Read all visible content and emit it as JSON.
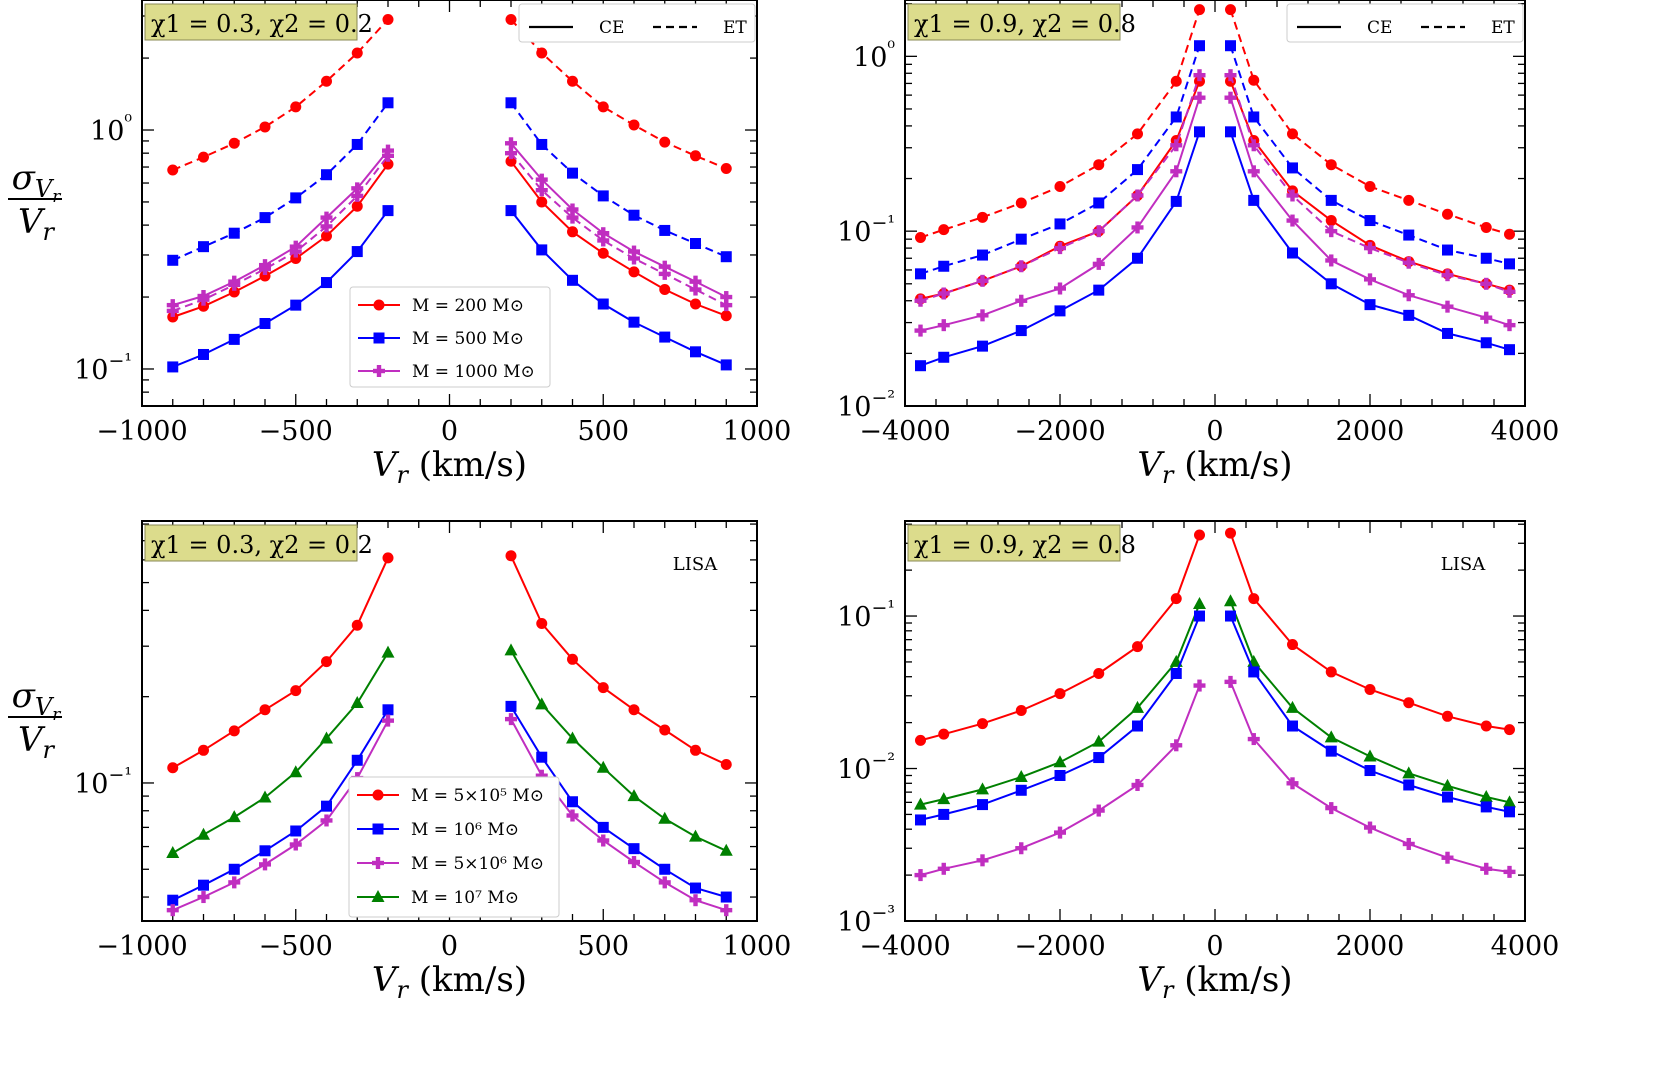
{
  "figure": {
    "ylabel_num": "σ",
    "ylabel_sub": "Vr",
    "ylabel_den": "Vr"
  },
  "chart_data": [
    {
      "type": "line",
      "id": "top-left",
      "xlabel": "Vr (km/s)",
      "xlim": [
        -1000,
        1000
      ],
      "xticks": [
        -1000,
        -500,
        0,
        500,
        1000
      ],
      "xtick_labels": [
        "−1000",
        "−500",
        "0",
        "500",
        "1000"
      ],
      "yscale": "log",
      "ylim": [
        0.07,
        3.5
      ],
      "ytick_exps": [
        -1,
        0
      ],
      "annotation": "χ1 = 0.3, χ2 = 0.2",
      "linestyle_legend": [
        {
          "label": "CE",
          "dash": "solid"
        },
        {
          "label": "ET",
          "dash": "dashed"
        }
      ],
      "detector_label": "",
      "legend": [
        "M = 200 M⊙",
        "M = 500 M⊙",
        "M = 1000 M⊙"
      ],
      "x": [
        -900,
        -800,
        -700,
        -600,
        -500,
        -400,
        -300,
        -200,
        200,
        300,
        400,
        500,
        600,
        700,
        800,
        900
      ],
      "series": [
        {
          "name": "M = 200 M⊙ (CE)",
          "color": "#ff0000",
          "marker": "circle",
          "dash": "solid",
          "values": [
            0.165,
            0.183,
            0.21,
            0.245,
            0.29,
            0.36,
            0.48,
            0.72,
            0.74,
            0.5,
            0.375,
            0.305,
            0.255,
            0.215,
            0.187,
            0.167
          ]
        },
        {
          "name": "M = 200 M⊙ (ET)",
          "color": "#ff0000",
          "marker": "circle",
          "dash": "dashed",
          "values": [
            0.68,
            0.77,
            0.88,
            1.03,
            1.25,
            1.6,
            2.1,
            2.9,
            2.9,
            2.1,
            1.6,
            1.25,
            1.05,
            0.89,
            0.78,
            0.69
          ]
        },
        {
          "name": "M = 500 M⊙ (CE)",
          "color": "#0000ff",
          "marker": "square",
          "dash": "solid",
          "values": [
            0.102,
            0.115,
            0.133,
            0.155,
            0.185,
            0.23,
            0.31,
            0.46,
            0.46,
            0.315,
            0.235,
            0.187,
            0.157,
            0.136,
            0.118,
            0.104
          ]
        },
        {
          "name": "M = 500 M⊙ (ET)",
          "color": "#0000ff",
          "marker": "square",
          "dash": "dashed",
          "values": [
            0.285,
            0.325,
            0.37,
            0.43,
            0.52,
            0.65,
            0.87,
            1.3,
            1.3,
            0.87,
            0.66,
            0.53,
            0.44,
            0.38,
            0.335,
            0.295
          ]
        },
        {
          "name": "M = 1000 M⊙ (CE)",
          "color": "#c02ec0",
          "marker": "plus",
          "dash": "solid",
          "values": [
            0.185,
            0.202,
            0.232,
            0.272,
            0.325,
            0.43,
            0.57,
            0.82,
            0.88,
            0.62,
            0.465,
            0.37,
            0.31,
            0.268,
            0.232,
            0.2
          ]
        },
        {
          "name": "M = 1000 M⊙ (ET)",
          "color": "#c02ec0",
          "marker": "plus",
          "dash": "dashed",
          "values": [
            0.175,
            0.195,
            0.225,
            0.262,
            0.31,
            0.395,
            0.53,
            0.78,
            0.8,
            0.56,
            0.43,
            0.345,
            0.29,
            0.25,
            0.215,
            0.185
          ]
        }
      ]
    },
    {
      "type": "line",
      "id": "top-right",
      "xlabel": "Vr (km/s)",
      "xlim": [
        -4000,
        4000
      ],
      "xticks": [
        -4000,
        -2000,
        0,
        2000,
        4000
      ],
      "xtick_labels": [
        "−4000",
        "−2000",
        "0",
        "2000",
        "4000"
      ],
      "yscale": "log",
      "ylim": [
        0.01,
        2.1
      ],
      "ytick_exps": [
        -2,
        -1,
        0
      ],
      "annotation": "χ1 = 0.9, χ2 = 0.8",
      "linestyle_legend": [
        {
          "label": "CE",
          "dash": "solid"
        },
        {
          "label": "ET",
          "dash": "dashed"
        }
      ],
      "detector_label": "",
      "legend": [],
      "x": [
        -3800,
        -3500,
        -3000,
        -2500,
        -2000,
        -1500,
        -1000,
        -500,
        -200,
        200,
        500,
        1000,
        1500,
        2000,
        2500,
        3000,
        3500,
        3800
      ],
      "series": [
        {
          "name": "red CE",
          "color": "#ff0000",
          "marker": "circle",
          "dash": "solid",
          "values": [
            0.041,
            0.044,
            0.052,
            0.063,
            0.082,
            0.1,
            0.16,
            0.33,
            0.72,
            0.72,
            0.33,
            0.17,
            0.115,
            0.083,
            0.067,
            0.057,
            0.05,
            0.046
          ]
        },
        {
          "name": "red ET",
          "color": "#ff0000",
          "marker": "circle",
          "dash": "dashed",
          "values": [
            0.092,
            0.102,
            0.12,
            0.145,
            0.18,
            0.24,
            0.36,
            0.72,
            1.85,
            1.85,
            0.73,
            0.36,
            0.24,
            0.18,
            0.15,
            0.125,
            0.105,
            0.096
          ]
        },
        {
          "name": "blue CE",
          "color": "#0000ff",
          "marker": "square",
          "dash": "solid",
          "values": [
            0.017,
            0.019,
            0.022,
            0.027,
            0.035,
            0.046,
            0.07,
            0.148,
            0.37,
            0.37,
            0.15,
            0.075,
            0.05,
            0.038,
            0.033,
            0.026,
            0.023,
            0.021
          ]
        },
        {
          "name": "blue ET",
          "color": "#0000ff",
          "marker": "square",
          "dash": "dashed",
          "values": [
            0.057,
            0.063,
            0.073,
            0.09,
            0.11,
            0.145,
            0.225,
            0.45,
            1.15,
            1.15,
            0.45,
            0.23,
            0.15,
            0.115,
            0.095,
            0.078,
            0.07,
            0.065
          ]
        },
        {
          "name": "magenta CE",
          "color": "#c02ec0",
          "marker": "plus",
          "dash": "solid",
          "values": [
            0.027,
            0.029,
            0.033,
            0.04,
            0.047,
            0.065,
            0.105,
            0.22,
            0.58,
            0.58,
            0.22,
            0.115,
            0.068,
            0.053,
            0.043,
            0.037,
            0.032,
            0.029
          ]
        },
        {
          "name": "magenta ET",
          "color": "#c02ec0",
          "marker": "plus",
          "dash": "dashed",
          "values": [
            0.04,
            0.044,
            0.052,
            0.063,
            0.08,
            0.1,
            0.16,
            0.31,
            0.78,
            0.78,
            0.31,
            0.16,
            0.1,
            0.08,
            0.066,
            0.056,
            0.05,
            0.045
          ]
        }
      ]
    },
    {
      "type": "line",
      "id": "bottom-left",
      "xlabel": "Vr (km/s)",
      "xlim": [
        -1000,
        1000
      ],
      "xticks": [
        -1000,
        -500,
        0,
        500,
        1000
      ],
      "xtick_labels": [
        "−1000",
        "−500",
        "0",
        "500",
        "1000"
      ],
      "yscale": "log",
      "ylim": [
        0.033,
        0.82
      ],
      "ytick_exps": [
        -1
      ],
      "annotation": "χ1 = 0.3, χ2 = 0.2",
      "linestyle_legend": [],
      "detector_label": "LISA",
      "legend": [
        "M = 5×10⁵ M⊙",
        "M = 10⁶ M⊙",
        "M = 5×10⁶ M⊙",
        "M = 10⁷ M⊙"
      ],
      "x": [
        -900,
        -800,
        -700,
        -600,
        -500,
        -400,
        -300,
        -200,
        200,
        300,
        400,
        500,
        600,
        700,
        800,
        900
      ],
      "series": [
        {
          "name": "M = 5×10⁵ M⊙",
          "color": "#ff0000",
          "marker": "circle",
          "dash": "solid",
          "values": [
            0.113,
            0.13,
            0.152,
            0.18,
            0.21,
            0.265,
            0.355,
            0.61,
            0.62,
            0.36,
            0.27,
            0.215,
            0.18,
            0.153,
            0.13,
            0.116
          ]
        },
        {
          "name": "M = 10⁶ M⊙",
          "color": "#0000ff",
          "marker": "square",
          "dash": "solid",
          "values": [
            0.039,
            0.044,
            0.05,
            0.058,
            0.068,
            0.083,
            0.12,
            0.18,
            0.185,
            0.123,
            0.086,
            0.07,
            0.059,
            0.05,
            0.043,
            0.04
          ]
        },
        {
          "name": "M = 5×10⁶ M⊙",
          "color": "#c02ec0",
          "marker": "plus",
          "dash": "solid",
          "values": [
            0.036,
            0.04,
            0.045,
            0.052,
            0.061,
            0.074,
            0.104,
            0.165,
            0.167,
            0.106,
            0.077,
            0.063,
            0.053,
            0.045,
            0.039,
            0.036
          ]
        },
        {
          "name": "M = 10⁷ M⊙",
          "color": "#008000",
          "marker": "triangle",
          "dash": "solid",
          "values": [
            0.057,
            0.066,
            0.076,
            0.089,
            0.109,
            0.143,
            0.19,
            0.285,
            0.29,
            0.188,
            0.143,
            0.113,
            0.09,
            0.075,
            0.065,
            0.058
          ]
        }
      ]
    },
    {
      "type": "line",
      "id": "bottom-right",
      "xlabel": "Vr (km/s)",
      "xlim": [
        -4000,
        4000
      ],
      "xticks": [
        -4000,
        -2000,
        0,
        2000,
        4000
      ],
      "xtick_labels": [
        "−4000",
        "−2000",
        "0",
        "2000",
        "4000"
      ],
      "yscale": "log",
      "ylim": [
        0.001,
        0.42
      ],
      "ytick_exps": [
        -3,
        -2,
        -1
      ],
      "annotation": "χ1 = 0.9, χ2 = 0.8",
      "linestyle_legend": [],
      "detector_label": "LISA",
      "legend": [],
      "x": [
        -3800,
        -3500,
        -3000,
        -2500,
        -2000,
        -1500,
        -1000,
        -500,
        -200,
        200,
        500,
        1000,
        1500,
        2000,
        2500,
        3000,
        3500,
        3800
      ],
      "series": [
        {
          "name": "red",
          "color": "#ff0000",
          "marker": "circle",
          "dash": "solid",
          "values": [
            0.0153,
            0.0168,
            0.0197,
            0.024,
            0.031,
            0.042,
            0.063,
            0.13,
            0.34,
            0.35,
            0.13,
            0.065,
            0.043,
            0.033,
            0.027,
            0.022,
            0.019,
            0.018
          ]
        },
        {
          "name": "green",
          "color": "#008000",
          "marker": "triangle",
          "dash": "solid",
          "values": [
            0.0058,
            0.0063,
            0.0073,
            0.0088,
            0.011,
            0.015,
            0.025,
            0.05,
            0.12,
            0.125,
            0.05,
            0.025,
            0.016,
            0.012,
            0.0093,
            0.0077,
            0.0065,
            0.006
          ]
        },
        {
          "name": "blue",
          "color": "#0000ff",
          "marker": "square",
          "dash": "solid",
          "values": [
            0.0046,
            0.005,
            0.0058,
            0.0072,
            0.009,
            0.0118,
            0.019,
            0.042,
            0.1,
            0.1,
            0.043,
            0.019,
            0.013,
            0.0097,
            0.0078,
            0.0065,
            0.0056,
            0.0052
          ]
        },
        {
          "name": "magenta",
          "color": "#c02ec0",
          "marker": "plus",
          "dash": "solid",
          "values": [
            0.002,
            0.0022,
            0.0025,
            0.003,
            0.0038,
            0.0053,
            0.0078,
            0.0142,
            0.035,
            0.037,
            0.0156,
            0.008,
            0.0055,
            0.0041,
            0.0032,
            0.0026,
            0.0022,
            0.0021
          ]
        }
      ]
    }
  ]
}
